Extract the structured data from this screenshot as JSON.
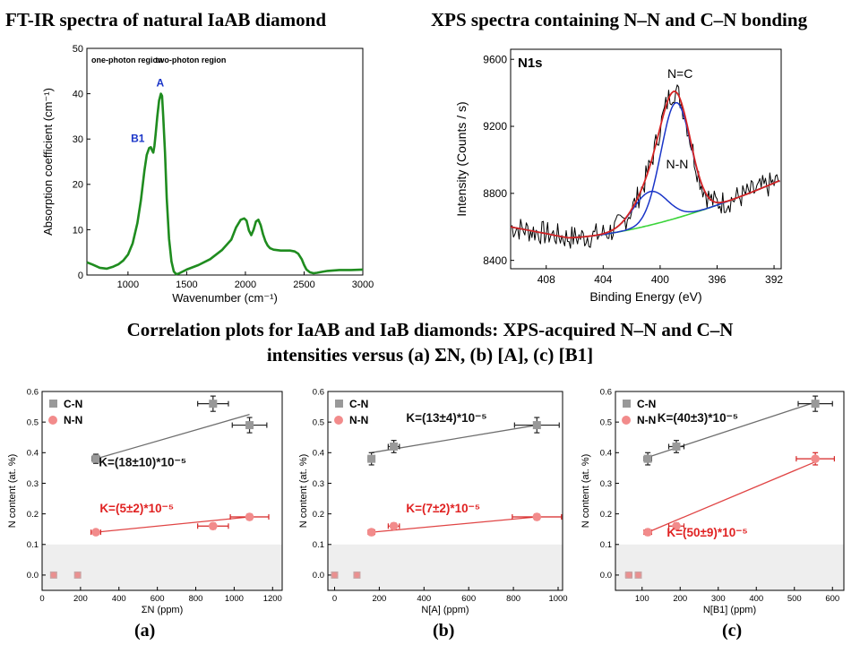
{
  "headings": {
    "ftir": "FT-IR spectra of natural IaAB diamond",
    "xps": "XPS spectra containing N–N and C–N bonding",
    "corr_line1": "Correlation plots for IaAB and IaB diamonds: XPS-acquired N–N and C–N",
    "corr_line2": "intensities versus (a) ΣN, (b) [A], (c) [B1]"
  },
  "sublabels": {
    "a": "(a)",
    "b": "(b)",
    "c": "(c)"
  },
  "colors": {
    "ftir_line": "#1f8c1f",
    "blue": "#1a35c8",
    "red": "#d52424",
    "green": "#3bd43b",
    "cn": "#999999",
    "nn": "#f28b8b",
    "cn_fit": "#6e6e6e",
    "nn_fit": "#e04545",
    "k_cn": "#111111",
    "k_nn": "#e02222",
    "shade": "#eeeeee"
  },
  "chart_data": [
    {
      "id": "ftir",
      "type": "line",
      "xlabel": "Wavenumber (cm⁻¹)",
      "ylabel": "Absorption coefficient (cm⁻¹)",
      "xlim": [
        650,
        3000
      ],
      "ylim": [
        0,
        50
      ],
      "xticks": [
        1000,
        1500,
        2000,
        2500,
        3000
      ],
      "yticks": [
        0,
        10,
        20,
        30,
        40,
        50
      ],
      "region_labels": [
        "one-photon region",
        "two-photon region"
      ],
      "peak_labels": [
        {
          "text": "A",
          "x": 1282,
          "y": 40
        },
        {
          "text": "B1",
          "x": 1175,
          "y": 28
        }
      ],
      "x": [
        650,
        700,
        760,
        820,
        870,
        920,
        960,
        1000,
        1040,
        1080,
        1110,
        1140,
        1160,
        1180,
        1195,
        1205,
        1215,
        1225,
        1235,
        1250,
        1265,
        1280,
        1290,
        1300,
        1315,
        1330,
        1350,
        1370,
        1390,
        1410,
        1430,
        1460,
        1500,
        1600,
        1700,
        1800,
        1880,
        1920,
        1960,
        1990,
        2010,
        2030,
        2050,
        2070,
        2090,
        2110,
        2130,
        2150,
        2170,
        2190,
        2210,
        2240,
        2270,
        2300,
        2340,
        2380,
        2420,
        2450,
        2480,
        2500,
        2520,
        2550,
        2580,
        2610,
        2650,
        2700,
        2750,
        2800,
        2900,
        3000
      ],
      "y": [
        2.8,
        2.3,
        1.6,
        1.4,
        1.8,
        2.4,
        3.2,
        4.5,
        7,
        11.5,
        16.5,
        23,
        26.5,
        28,
        28.2,
        27.5,
        27,
        28.5,
        31,
        35,
        38.5,
        40,
        39.5,
        35,
        27,
        17,
        8,
        3,
        0.8,
        0.2,
        0.3,
        0.7,
        1.2,
        2.2,
        3.5,
        5.5,
        7.8,
        10.5,
        12.2,
        12.5,
        12,
        9.8,
        8.8,
        10,
        11.8,
        12.2,
        11,
        9,
        7.5,
        6.5,
        5.9,
        5.6,
        5.5,
        5.4,
        5.4,
        5.4,
        5.2,
        4.7,
        3.5,
        2.2,
        1.2,
        0.6,
        0.4,
        0.5,
        0.7,
        0.9,
        1.0,
        1.1,
        1.1,
        1.2
      ]
    },
    {
      "id": "xps",
      "type": "line",
      "xlabel": "Binding Energy (eV)",
      "ylabel": "Intensity (Counts / s)",
      "xlim": [
        410.5,
        391.5
      ],
      "ylim": [
        8350,
        9660
      ],
      "xticks": [
        408,
        404,
        400,
        396,
        392
      ],
      "yticks": [
        8400,
        8800,
        9200,
        9600
      ],
      "panel_label": "N1s",
      "peak_labels": [
        {
          "text": "N=C",
          "x": 398.6,
          "y": 9490
        },
        {
          "text": "N-N",
          "x": 398.8,
          "y": 8950
        }
      ],
      "components": {
        "background_start": 8600,
        "background_min": 8535,
        "background_end": 8880,
        "nc_center": 398.9,
        "nc_height": 690,
        "nc_sigma": 1.05,
        "nn_center": 400.7,
        "nn_height": 200,
        "nn_sigma": 1.2
      },
      "raw_noise_amplitude": 75
    },
    {
      "id": "corr_a",
      "type": "scatter",
      "xlabel": "ΣN (ppm)",
      "ylabel": "N content (at. %)",
      "xlim": [
        0,
        1250
      ],
      "ylim": [
        -0.05,
        0.6
      ],
      "xticks": [
        0,
        200,
        400,
        600,
        800,
        1000,
        1200
      ],
      "yticks": [
        0.0,
        0.1,
        0.2,
        0.3,
        0.4,
        0.5,
        0.6
      ],
      "shaded_below": 0.1,
      "legend": [
        "C-N",
        "N-N"
      ],
      "series": [
        {
          "name": "C-N",
          "points": [
            [
              280,
              0.38
            ],
            [
              890,
              0.56
            ],
            [
              1080,
              0.49
            ]
          ],
          "xerr": [
            20,
            80,
            90
          ],
          "yerr": [
            0.015,
            0.025,
            0.025
          ]
        },
        {
          "name": "N-N",
          "points": [
            [
              280,
              0.14
            ],
            [
              890,
              0.16
            ],
            [
              1080,
              0.19
            ]
          ],
          "xerr": [
            25,
            80,
            100
          ],
          "yerr": [
            0.008,
            0.01,
            0.01
          ]
        },
        {
          "name": "zero",
          "points": [
            [
              60,
              0.0
            ],
            [
              185,
              0.0
            ]
          ],
          "xerr": [
            8,
            12
          ],
          "yerr": [
            0.005,
            0.005
          ]
        }
      ],
      "fits": [
        {
          "name": "C-N",
          "x": [
            280,
            1080
          ],
          "y": [
            0.38,
            0.525
          ],
          "label": "K=(18±10)*10⁻⁵"
        },
        {
          "name": "N-N",
          "x": [
            280,
            1080
          ],
          "y": [
            0.14,
            0.19
          ],
          "label": "K=(5±2)*10⁻⁵"
        }
      ]
    },
    {
      "id": "corr_b",
      "type": "scatter",
      "xlabel": "N[A] (ppm)",
      "ylabel": "N content (at. %)",
      "xlim": [
        -30,
        1020
      ],
      "ylim": [
        -0.05,
        0.6
      ],
      "xticks": [
        0,
        200,
        400,
        600,
        800,
        1000
      ],
      "yticks": [
        0.0,
        0.1,
        0.2,
        0.3,
        0.4,
        0.5,
        0.6
      ],
      "shaded_below": 0.1,
      "legend": [
        "C-N",
        "N-N"
      ],
      "series": [
        {
          "name": "C-N",
          "points": [
            [
              165,
              0.38
            ],
            [
              265,
              0.42
            ],
            [
              905,
              0.49
            ]
          ],
          "xerr": [
            15,
            25,
            100
          ],
          "yerr": [
            0.02,
            0.02,
            0.025
          ]
        },
        {
          "name": "N-N",
          "points": [
            [
              165,
              0.14
            ],
            [
              265,
              0.16
            ],
            [
              905,
              0.19
            ]
          ],
          "xerr": [
            15,
            25,
            110
          ],
          "yerr": [
            0.01,
            0.01,
            0.01
          ]
        },
        {
          "name": "zero",
          "points": [
            [
              0,
              0.0
            ],
            [
              100,
              0.0
            ]
          ],
          "xerr": [
            5,
            8
          ],
          "yerr": [
            0.005,
            0.005
          ]
        }
      ],
      "fits": [
        {
          "name": "C-N",
          "x": [
            165,
            905
          ],
          "y": [
            0.4,
            0.49
          ],
          "label": "K=(13±4)*10⁻⁵"
        },
        {
          "name": "N-N",
          "x": [
            165,
            905
          ],
          "y": [
            0.14,
            0.19
          ],
          "label": "K=(7±2)*10⁻⁵"
        }
      ]
    },
    {
      "id": "corr_c",
      "type": "scatter",
      "xlabel": "N[B1] (ppm)",
      "ylabel": "N content (at. %)",
      "xlim": [
        30,
        630
      ],
      "ylim": [
        -0.05,
        0.6
      ],
      "xticks": [
        100,
        200,
        300,
        400,
        500,
        600
      ],
      "yticks": [
        0.0,
        0.1,
        0.2,
        0.3,
        0.4,
        0.5,
        0.6
      ],
      "shaded_below": 0.1,
      "legend": [
        "C-N",
        "N-N"
      ],
      "series": [
        {
          "name": "C-N",
          "points": [
            [
              115,
              0.38
            ],
            [
              190,
              0.42
            ],
            [
              555,
              0.56
            ]
          ],
          "xerr": [
            10,
            20,
            45
          ],
          "yerr": [
            0.02,
            0.02,
            0.025
          ]
        },
        {
          "name": "N-N",
          "points": [
            [
              115,
              0.14
            ],
            [
              190,
              0.16
            ],
            [
              555,
              0.38
            ]
          ],
          "xerr": [
            10,
            20,
            50
          ],
          "yerr": [
            0.01,
            0.01,
            0.02
          ]
        },
        {
          "name": "zero",
          "points": [
            [
              65,
              0.0
            ],
            [
              90,
              0.0
            ]
          ],
          "xerr": [
            8,
            8
          ],
          "yerr": [
            0.005,
            0.005
          ]
        }
      ],
      "fits": [
        {
          "name": "C-N",
          "x": [
            115,
            555
          ],
          "y": [
            0.385,
            0.565
          ],
          "label": "K=(40±3)*10⁻⁵"
        },
        {
          "name": "N-N",
          "x": [
            115,
            555
          ],
          "y": [
            0.14,
            0.37
          ],
          "label": "K=(50±9)*10⁻⁵"
        }
      ]
    }
  ]
}
